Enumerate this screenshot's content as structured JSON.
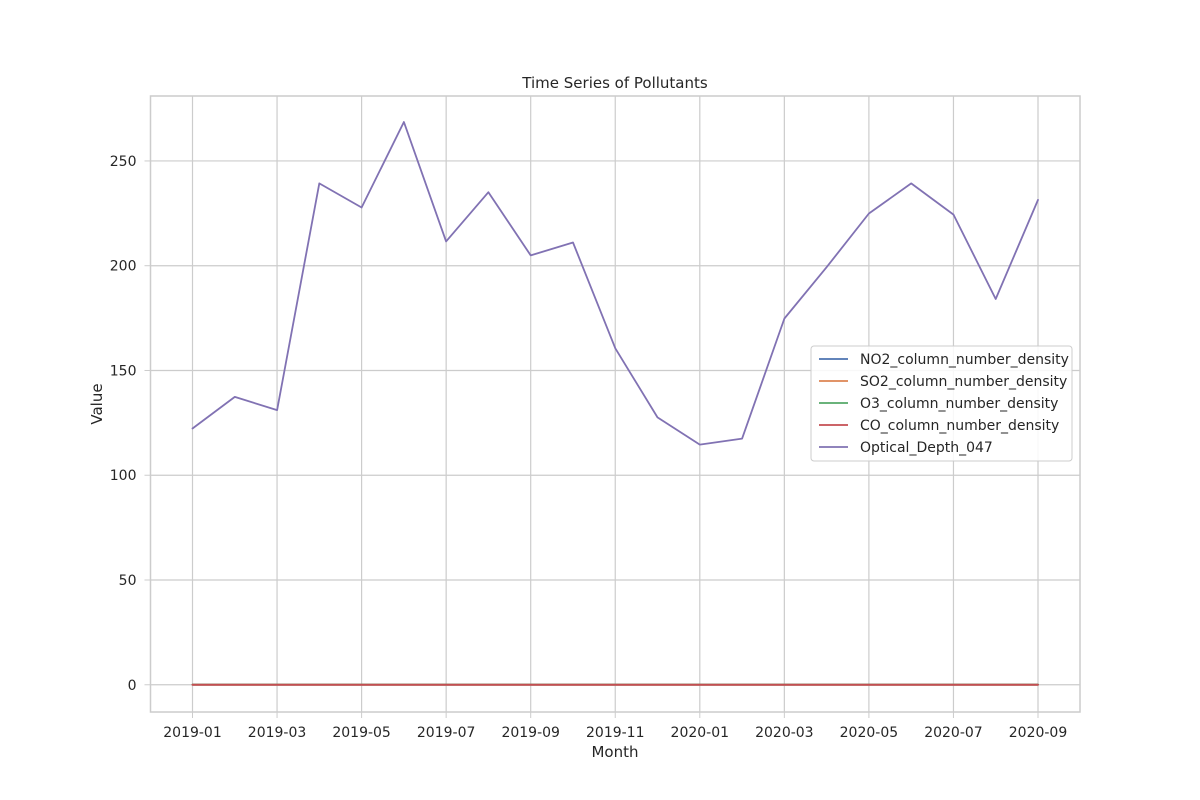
{
  "chart_data": {
    "type": "line",
    "title": "Time Series of Pollutants",
    "xlabel": "Month",
    "ylabel": "Value",
    "ylim": [
      -13,
      281
    ],
    "y_ticks": [
      0,
      50,
      100,
      150,
      200,
      250
    ],
    "x_ticks": [
      "2019-01",
      "2019-03",
      "2019-05",
      "2019-07",
      "2019-09",
      "2019-11",
      "2020-01",
      "2020-03",
      "2020-05",
      "2020-07",
      "2020-09"
    ],
    "x": [
      "2019-01",
      "2019-02",
      "2019-03",
      "2019-04",
      "2019-05",
      "2019-06",
      "2019-07",
      "2019-08",
      "2019-09",
      "2019-10",
      "2019-11",
      "2019-12",
      "2020-01",
      "2020-02",
      "2020-03",
      "2020-04",
      "2020-05",
      "2020-06",
      "2020-07",
      "2020-08",
      "2020-09"
    ],
    "grid": true,
    "legend_position": "center-right",
    "series": [
      {
        "name": "NO2_column_number_density",
        "color": "#4c72b0",
        "values": [
          0,
          0,
          0,
          0,
          0,
          0,
          0,
          0,
          0,
          0,
          0,
          0,
          0,
          0,
          0,
          0,
          0,
          0,
          0,
          0,
          0
        ]
      },
      {
        "name": "SO2_column_number_density",
        "color": "#dd8452",
        "values": [
          0,
          0,
          0,
          0,
          0,
          0,
          0,
          0,
          0,
          0,
          0,
          0,
          0,
          0,
          0,
          0,
          0,
          0,
          0,
          0,
          0
        ]
      },
      {
        "name": "O3_column_number_density",
        "color": "#55a868",
        "values": [
          0.12,
          0.12,
          0.12,
          0.12,
          0.12,
          0.12,
          0.12,
          0.12,
          0.12,
          0.12,
          0.12,
          0.12,
          0.12,
          0.12,
          0.12,
          0.12,
          0.12,
          0.12,
          0.12,
          0.12,
          0.12
        ]
      },
      {
        "name": "CO_column_number_density",
        "color": "#c44e52",
        "values": [
          0.03,
          0.03,
          0.03,
          0.03,
          0.03,
          0.03,
          0.03,
          0.03,
          0.03,
          0.03,
          0.03,
          0.03,
          0.03,
          0.03,
          0.03,
          0.03,
          0.03,
          0.03,
          0.03,
          0.03,
          0.03
        ]
      },
      {
        "name": "Optical_Depth_047",
        "color": "#8172b3",
        "values": [
          122.3,
          137.4,
          131.1,
          239.3,
          227.8,
          268.6,
          211.6,
          235.1,
          204.9,
          211.1,
          160.6,
          127.6,
          114.6,
          117.5,
          174.8,
          199.3,
          224.9,
          239.3,
          224.4,
          184.1,
          231.4
        ]
      }
    ]
  }
}
